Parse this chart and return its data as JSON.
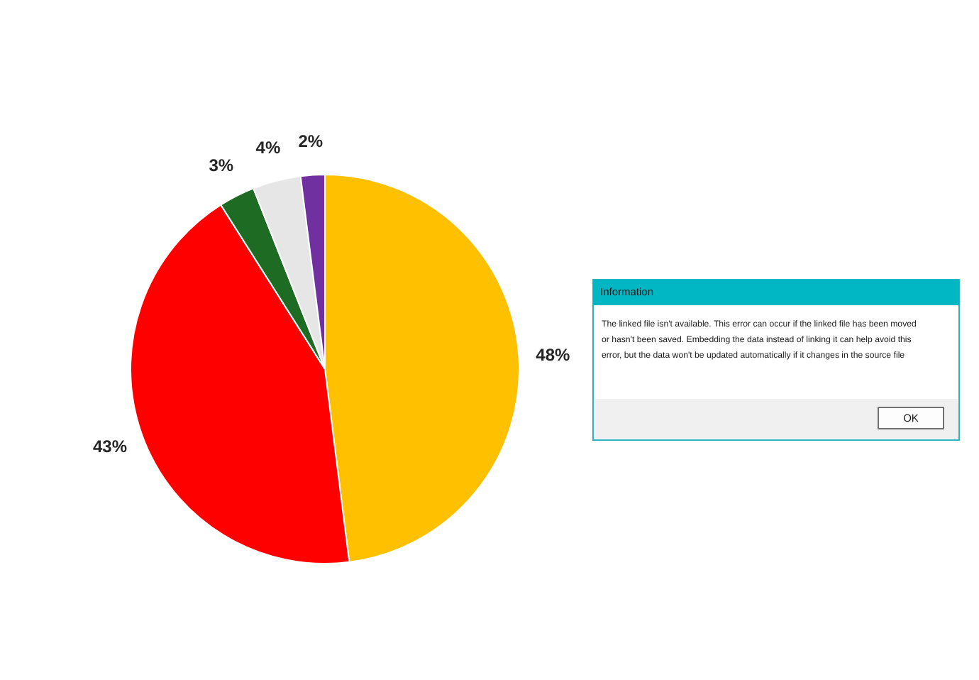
{
  "chart_data": {
    "type": "pie",
    "categories": [
      null,
      null,
      null,
      null,
      null
    ],
    "values": [
      48,
      43,
      3,
      4,
      2
    ],
    "colors": [
      "#ffc000",
      "#ff0000",
      "#1e6b24",
      "#e7e6e6",
      "#7030a0"
    ],
    "value_labels": [
      "48%",
      "43%",
      "3%",
      "4%",
      "2%"
    ],
    "annotations": [
      "Information",
      "The linked file isn't available. This error can occur if the linked file has been moved or hasn't been saved. Embedding the data instead of linking it can help avoid this error, but the data won't be updated automatically if it changes in the source file",
      "OK"
    ]
  }
}
